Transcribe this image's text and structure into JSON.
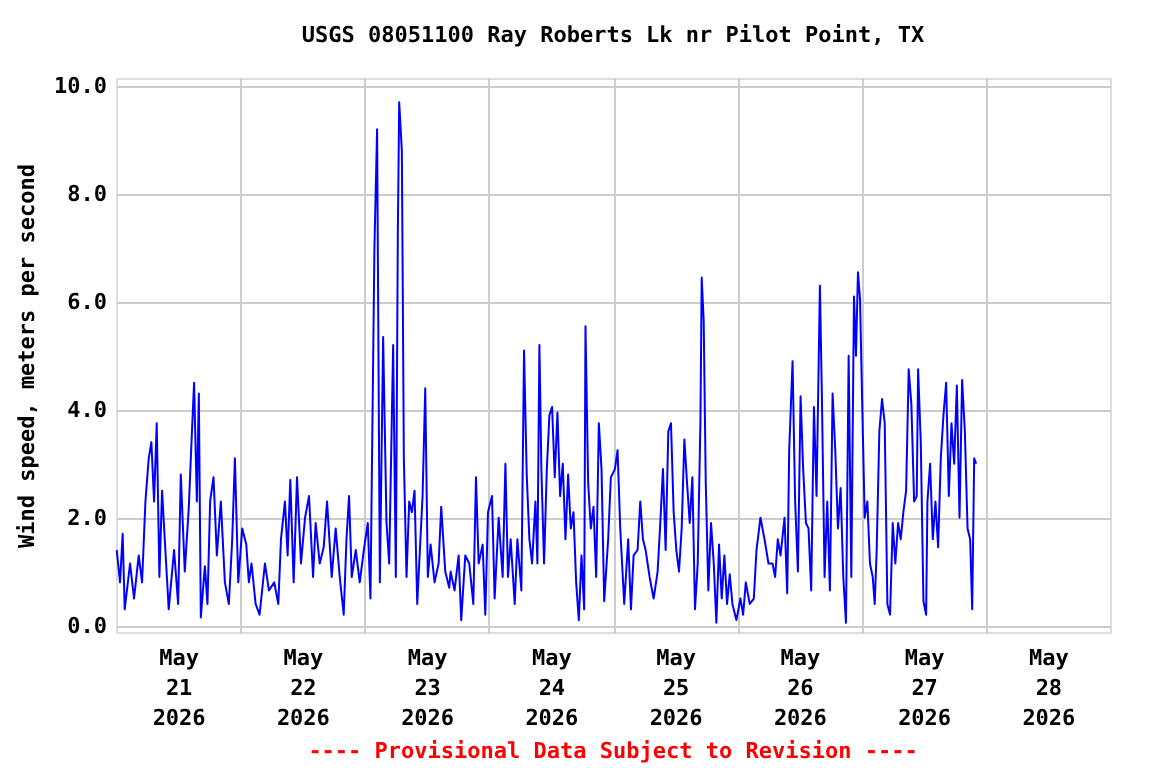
{
  "chart_data": {
    "type": "line",
    "title": "USGS 08051100 Ray Roberts Lk nr Pilot Point, TX",
    "ylabel": "Wind speed, meters per second",
    "annotations": [
      "---- Provisional Data Subject to Revision ----"
    ],
    "x": [
      "2026-05-21T00:08",
      "2026-05-21T00:47",
      "2026-05-21T01:17",
      "2026-05-21T01:41",
      "2026-05-21T02:43",
      "2026-05-21T03:29",
      "2026-05-21T04:23",
      "2026-05-21T05:02",
      "2026-05-21T05:41",
      "2026-05-21T06:19",
      "2026-05-21T06:50",
      "2026-05-21T07:21",
      "2026-05-21T07:52",
      "2026-05-21T08:23",
      "2026-05-21T08:54",
      "2026-05-21T09:25",
      "2026-05-21T10:11",
      "2026-05-21T11:13",
      "2026-05-21T12:00",
      "2026-05-21T12:31",
      "2026-05-21T13:17",
      "2026-05-21T14:04",
      "2026-05-21T14:35",
      "2026-05-21T15:05",
      "2026-05-21T15:37",
      "2026-05-21T16:00",
      "2026-05-21T16:23",
      "2026-05-21T17:10",
      "2026-05-21T17:40",
      "2026-05-21T18:11",
      "2026-05-21T18:50",
      "2026-05-21T19:29",
      "2026-05-21T20:15",
      "2026-05-21T21:02",
      "2026-05-21T21:48",
      "2026-05-21T22:27",
      "2026-05-21T22:58",
      "2026-05-21T23:37",
      "2026-05-22T00:23",
      "2026-05-22T01:10",
      "2026-05-22T01:40",
      "2026-05-22T02:11",
      "2026-05-22T02:58",
      "2026-05-22T03:44",
      "2026-05-22T04:46",
      "2026-05-22T05:32",
      "2026-05-22T06:34",
      "2026-05-22T07:21",
      "2026-05-22T07:52",
      "2026-05-22T08:38",
      "2026-05-22T09:09",
      "2026-05-22T09:40",
      "2026-05-22T10:19",
      "2026-05-22T10:58",
      "2026-05-22T11:44",
      "2026-05-22T12:31",
      "2026-05-22T13:17",
      "2026-05-22T14:04",
      "2026-05-22T14:34",
      "2026-05-22T15:21",
      "2026-05-22T16:07",
      "2026-05-22T16:46",
      "2026-05-22T17:40",
      "2026-05-22T18:26",
      "2026-05-22T19:13",
      "2026-05-22T19:59",
      "2026-05-22T20:31",
      "2026-05-22T21:01",
      "2026-05-22T21:32",
      "2026-05-22T22:19",
      "2026-05-22T23:05",
      "2026-05-22T23:52",
      "2026-05-23T00:38",
      "2026-05-23T01:09",
      "2026-05-23T01:55",
      "2026-05-23T02:26",
      "2026-05-23T02:58",
      "2026-05-23T03:36",
      "2026-05-23T04:15",
      "2026-05-23T04:46",
      "2026-05-23T05:32",
      "2026-05-23T06:03",
      "2026-05-23T06:26",
      "2026-05-23T06:42",
      "2026-05-23T07:13",
      "2026-05-23T07:36",
      "2026-05-23T08:07",
      "2026-05-23T08:38",
      "2026-05-23T09:09",
      "2026-05-23T09:40",
      "2026-05-23T10:11",
      "2026-05-23T10:42",
      "2026-05-23T11:13",
      "2026-05-23T11:44",
      "2026-05-23T12:14",
      "2026-05-23T12:46",
      "2026-05-23T13:32",
      "2026-05-23T14:19",
      "2026-05-23T14:49",
      "2026-05-23T15:36",
      "2026-05-23T16:22",
      "2026-05-23T16:38",
      "2026-05-23T17:24",
      "2026-05-23T18:11",
      "2026-05-23T18:41",
      "2026-05-23T19:28",
      "2026-05-23T20:14",
      "2026-05-23T21:01",
      "2026-05-23T21:32",
      "2026-05-23T22:03",
      "2026-05-23T22:49",
      "2026-05-23T23:20",
      "2026-05-23T23:51",
      "2026-05-24T00:38",
      "2026-05-24T01:08",
      "2026-05-24T01:55",
      "2026-05-24T02:41",
      "2026-05-24T03:13",
      "2026-05-24T03:43",
      "2026-05-24T04:14",
      "2026-05-24T05:01",
      "2026-05-24T05:32",
      "2026-05-24T06:18",
      "2026-05-24T06:49",
      "2026-05-24T07:20",
      "2026-05-24T07:51",
      "2026-05-24T08:22",
      "2026-05-24T09:01",
      "2026-05-24T09:24",
      "2026-05-24T09:47",
      "2026-05-24T10:10",
      "2026-05-24T10:41",
      "2026-05-24T11:13",
      "2026-05-24T11:43",
      "2026-05-24T12:14",
      "2026-05-24T12:45",
      "2026-05-24T13:16",
      "2026-05-24T13:47",
      "2026-05-24T14:18",
      "2026-05-24T14:49",
      "2026-05-24T15:20",
      "2026-05-24T15:51",
      "2026-05-24T16:22",
      "2026-05-24T16:53",
      "2026-05-24T17:24",
      "2026-05-24T17:55",
      "2026-05-24T18:26",
      "2026-05-24T18:41",
      "2026-05-24T19:12",
      "2026-05-24T19:43",
      "2026-05-24T20:14",
      "2026-05-24T20:45",
      "2026-05-24T21:16",
      "2026-05-24T21:47",
      "2026-05-24T22:18",
      "2026-05-24T23:04",
      "2026-05-24T23:35",
      "2026-05-25T00:22",
      "2026-05-25T00:53",
      "2026-05-25T01:24",
      "2026-05-25T02:10",
      "2026-05-25T02:56",
      "2026-05-25T03:28",
      "2026-05-25T03:59",
      "2026-05-25T04:45",
      "2026-05-25T05:16",
      "2026-05-25T05:47",
      "2026-05-25T06:18",
      "2026-05-25T07:04",
      "2026-05-25T07:51",
      "2026-05-25T08:37",
      "2026-05-25T09:08",
      "2026-05-25T09:39",
      "2026-05-25T10:10",
      "2026-05-25T10:41",
      "2026-05-25T11:12",
      "2026-05-25T11:43",
      "2026-05-25T12:14",
      "2026-05-25T12:45",
      "2026-05-25T13:16",
      "2026-05-25T13:47",
      "2026-05-25T14:18",
      "2026-05-25T14:49",
      "2026-05-25T15:20",
      "2026-05-25T15:50",
      "2026-05-25T16:22",
      "2026-05-25T16:53",
      "2026-05-25T17:08",
      "2026-05-25T17:31",
      "2026-05-25T17:55",
      "2026-05-25T18:25",
      "2026-05-25T18:56",
      "2026-05-25T19:28",
      "2026-05-25T19:58",
      "2026-05-25T20:29",
      "2026-05-25T21:00",
      "2026-05-25T21:31",
      "2026-05-25T22:02",
      "2026-05-25T22:33",
      "2026-05-25T23:04",
      "2026-05-25T23:50",
      "2026-05-26T00:37",
      "2026-05-26T01:08",
      "2026-05-26T01:39",
      "2026-05-26T02:25",
      "2026-05-26T03:12",
      "2026-05-26T03:43",
      "2026-05-26T04:29",
      "2026-05-26T05:16",
      "2026-05-26T06:02",
      "2026-05-26T06:49",
      "2026-05-26T07:19",
      "2026-05-26T07:50",
      "2026-05-26T08:22",
      "2026-05-26T09:08",
      "2026-05-26T09:39",
      "2026-05-26T10:02",
      "2026-05-26T10:41",
      "2026-05-26T11:11",
      "2026-05-26T11:43",
      "2026-05-26T12:14",
      "2026-05-26T12:44",
      "2026-05-26T13:16",
      "2026-05-26T13:46",
      "2026-05-26T14:17",
      "2026-05-26T14:49",
      "2026-05-26T15:19",
      "2026-05-26T15:58",
      "2026-05-26T16:21",
      "2026-05-26T16:52",
      "2026-05-26T17:23",
      "2026-05-26T17:54",
      "2026-05-26T18:25",
      "2026-05-26T18:56",
      "2026-05-26T19:27",
      "2026-05-26T19:58",
      "2026-05-26T20:29",
      "2026-05-26T21:00",
      "2026-05-26T21:31",
      "2026-05-26T22:02",
      "2026-05-26T22:33",
      "2026-05-26T22:56",
      "2026-05-26T23:19",
      "2026-05-26T23:43",
      "2026-05-27T00:05",
      "2026-05-27T00:37",
      "2026-05-27T01:08",
      "2026-05-27T01:38",
      "2026-05-27T02:10",
      "2026-05-27T02:33",
      "2026-05-27T02:56",
      "2026-05-27T03:27",
      "2026-05-27T03:58",
      "2026-05-27T04:29",
      "2026-05-27T05:00",
      "2026-05-27T05:31",
      "2026-05-27T06:02",
      "2026-05-27T06:32",
      "2026-05-27T07:04",
      "2026-05-27T07:35",
      "2026-05-27T08:05",
      "2026-05-27T08:37",
      "2026-05-27T09:07",
      "2026-05-27T09:38",
      "2026-05-27T10:10",
      "2026-05-27T10:40",
      "2026-05-27T10:56",
      "2026-05-27T11:27",
      "2026-05-27T11:58",
      "2026-05-27T12:29",
      "2026-05-27T12:44",
      "2026-05-27T13:15",
      "2026-05-27T13:46",
      "2026-05-27T14:17",
      "2026-05-27T14:48",
      "2026-05-27T15:19",
      "2026-05-27T15:50",
      "2026-05-27T16:21",
      "2026-05-27T16:52",
      "2026-05-27T17:23",
      "2026-05-27T17:54",
      "2026-05-27T18:25",
      "2026-05-27T18:56",
      "2026-05-27T19:26",
      "2026-05-27T19:58",
      "2026-05-27T20:29",
      "2026-05-27T20:59",
      "2026-05-27T21:23",
      "2026-05-27T21:46",
      "2026-05-27T22:09"
    ],
    "series": [
      {
        "color": "#0000ff",
        "values": [
          1.4,
          0.8,
          1.7,
          0.3,
          1.15,
          0.5,
          1.3,
          0.8,
          2.3,
          3.1,
          3.4,
          2.3,
          3.75,
          0.9,
          2.5,
          1.6,
          0.3,
          1.4,
          0.4,
          2.8,
          1.0,
          2.2,
          3.4,
          4.5,
          2.3,
          4.3,
          0.15,
          1.1,
          0.4,
          2.3,
          2.75,
          1.3,
          2.3,
          0.8,
          0.4,
          1.6,
          3.1,
          0.8,
          1.8,
          1.5,
          0.8,
          1.15,
          0.4,
          0.2,
          1.15,
          0.65,
          0.8,
          0.4,
          1.6,
          2.3,
          1.3,
          2.7,
          0.8,
          2.75,
          1.15,
          2.0,
          2.4,
          0.9,
          1.9,
          1.15,
          1.45,
          2.3,
          0.9,
          1.8,
          0.9,
          0.2,
          1.6,
          2.4,
          0.9,
          1.4,
          0.8,
          1.4,
          1.9,
          0.5,
          7.0,
          9.2,
          0.8,
          5.35,
          1.9,
          1.15,
          5.2,
          0.9,
          7.2,
          9.7,
          8.8,
          3.1,
          0.9,
          2.3,
          2.1,
          2.5,
          0.4,
          1.4,
          2.4,
          4.4,
          0.9,
          1.5,
          0.8,
          1.15,
          2.2,
          1.0,
          0.7,
          1.0,
          0.65,
          1.3,
          0.1,
          1.3,
          1.15,
          0.4,
          2.75,
          1.15,
          1.5,
          0.2,
          2.1,
          2.4,
          0.5,
          2.0,
          0.9,
          3.0,
          0.9,
          1.6,
          0.4,
          1.6,
          0.65,
          5.1,
          2.8,
          1.6,
          1.15,
          2.3,
          1.15,
          5.2,
          2.9,
          1.15,
          2.9,
          3.9,
          4.05,
          2.75,
          3.95,
          2.4,
          3.0,
          1.6,
          2.8,
          1.8,
          2.1,
          0.8,
          0.1,
          1.3,
          0.3,
          5.55,
          2.65,
          1.8,
          2.2,
          0.9,
          3.75,
          2.9,
          0.45,
          1.6,
          2.75,
          2.9,
          3.25,
          1.8,
          0.4,
          1.6,
          0.3,
          1.3,
          1.4,
          2.3,
          1.6,
          1.4,
          0.9,
          0.5,
          1.0,
          1.9,
          2.9,
          1.4,
          3.6,
          3.75,
          2.1,
          1.4,
          1.0,
          1.8,
          3.45,
          2.65,
          1.9,
          2.75,
          0.3,
          1.15,
          3.75,
          6.45,
          5.65,
          2.65,
          0.65,
          1.9,
          1.15,
          0.05,
          1.5,
          0.5,
          1.3,
          0.4,
          0.95,
          0.4,
          0.1,
          0.5,
          0.2,
          0.8,
          0.4,
          0.5,
          1.4,
          2.0,
          1.6,
          1.15,
          1.15,
          0.9,
          1.6,
          1.3,
          2.0,
          0.6,
          3.25,
          4.9,
          2.3,
          1.0,
          4.25,
          2.9,
          1.9,
          1.8,
          0.65,
          4.05,
          2.4,
          6.3,
          4.25,
          0.9,
          2.3,
          0.65,
          4.3,
          3.25,
          1.8,
          2.55,
          0.9,
          0.05,
          5.0,
          0.9,
          6.1,
          5.0,
          6.55,
          6.05,
          4.35,
          2.0,
          2.3,
          1.15,
          0.9,
          0.4,
          1.4,
          3.6,
          4.2,
          3.75,
          0.4,
          0.2,
          1.9,
          1.15,
          1.9,
          1.6,
          2.1,
          2.5,
          4.75,
          4.1,
          2.3,
          2.4,
          4.75,
          3.4,
          0.45,
          0.2,
          2.3,
          3.0,
          1.6,
          2.3,
          1.45,
          3.1,
          3.9,
          4.5,
          2.4,
          3.75,
          3.0,
          4.45,
          2.0,
          4.55,
          3.6,
          1.8,
          1.6,
          0.3,
          3.1,
          3.0
        ]
      }
    ],
    "xlim": [
      "2026-05-21",
      "2026-05-29"
    ],
    "xticks": [
      {
        "value": "2026-05-21T12:00",
        "label": "May\n21\n2026"
      },
      {
        "value": "2026-05-22T12:00",
        "label": "May\n22\n2026"
      },
      {
        "value": "2026-05-23T12:00",
        "label": "May\n23\n2026"
      },
      {
        "value": "2026-05-24T12:00",
        "label": "May\n24\n2026"
      },
      {
        "value": "2026-05-25T12:00",
        "label": "May\n25\n2026"
      },
      {
        "value": "2026-05-26T12:00",
        "label": "May\n26\n2026"
      },
      {
        "value": "2026-05-27T12:00",
        "label": "May\n27\n2026"
      },
      {
        "value": "2026-05-28T12:00",
        "label": "May\n28\n2026"
      },
      {
        "value": "2026-05-22",
        "label": null
      },
      {
        "value": "2026-05-23",
        "label": null
      },
      {
        "value": "2026-05-24",
        "label": null
      },
      {
        "value": "2026-05-25",
        "label": null
      },
      {
        "value": "2026-05-26",
        "label": null
      },
      {
        "value": "2026-05-27",
        "label": null
      },
      {
        "value": "2026-05-28",
        "label": null
      }
    ],
    "ylim": [
      -0.12,
      10.15
    ],
    "yticks": [
      {
        "value": 0,
        "label": "0.0"
      },
      {
        "value": 2,
        "label": "2.0"
      },
      {
        "value": 4,
        "label": "4.0"
      },
      {
        "value": 6,
        "label": "6.0"
      },
      {
        "value": 8,
        "label": "8.0"
      },
      {
        "value": 10,
        "label": "10.0"
      }
    ],
    "grid": true,
    "marker": "none",
    "line_style": "solid"
  }
}
